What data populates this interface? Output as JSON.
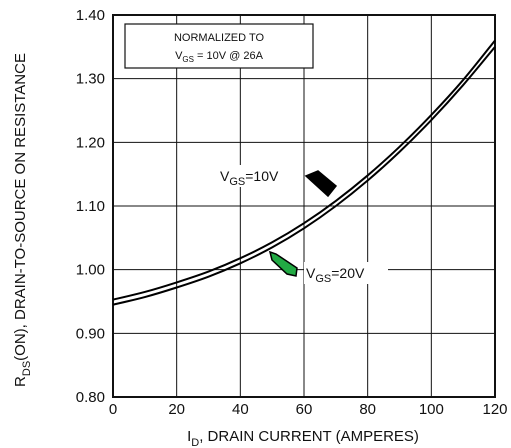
{
  "chart_data": {
    "type": "line",
    "xlabel_main": "I",
    "xlabel_sub": "D",
    "xlabel_rest": ", DRAIN CURRENT (AMPERES)",
    "ylabel_main": "R",
    "ylabel_sub": "DS",
    "ylabel_rest": "(ON), DRAIN-TO-SOURCE ON RESISTANCE",
    "xlim": [
      0,
      120
    ],
    "ylim": [
      0.8,
      1.4
    ],
    "x_ticks": [
      0,
      20,
      40,
      60,
      80,
      100,
      120
    ],
    "y_ticks": [
      "0.80",
      "0.90",
      "1.00",
      "1.10",
      "1.20",
      "1.30",
      "1.40"
    ],
    "grid": true,
    "note": {
      "line1": "NORMALIZED  TO",
      "vgs_main": "V",
      "vgs_sub": "GS",
      "line2_rest": " = 10V  @  26A"
    },
    "series": [
      {
        "label_main": "V",
        "label_sub": "GS",
        "label_rest": "=10V",
        "color": "#000000",
        "x": [
          0,
          10,
          20,
          30,
          40,
          50,
          60,
          70,
          80,
          90,
          100,
          110,
          120
        ],
        "y": [
          0.953,
          0.965,
          0.98,
          0.997,
          1.018,
          1.043,
          1.073,
          1.108,
          1.148,
          1.193,
          1.243,
          1.298,
          1.36
        ]
      },
      {
        "label_main": "V",
        "label_sub": "GS",
        "label_rest": "=20V",
        "color": "#000000",
        "x": [
          0,
          10,
          20,
          30,
          40,
          50,
          60,
          70,
          80,
          90,
          100,
          110,
          120
        ],
        "y": [
          0.945,
          0.957,
          0.972,
          0.989,
          1.01,
          1.035,
          1.065,
          1.1,
          1.14,
          1.185,
          1.235,
          1.29,
          1.35
        ]
      }
    ],
    "arrow_colors": [
      "#000000",
      "#22aa44"
    ]
  }
}
